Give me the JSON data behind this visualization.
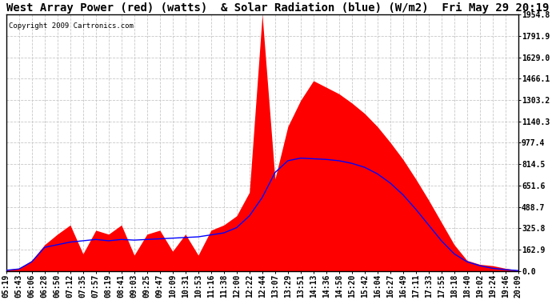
{
  "title": "West Array Power (red) (watts)  & Solar Radiation (blue) (W/m2)  Fri May 29 20:19",
  "copyright": "Copyright 2009 Cartronics.com",
  "background_color": "#ffffff",
  "plot_bg_color": "#ffffff",
  "grid_color": "#c8c8c8",
  "ymax": 1954.8,
  "ymin": 0.0,
  "yticks": [
    0.0,
    162.9,
    325.8,
    488.7,
    651.6,
    814.5,
    977.4,
    1140.3,
    1303.2,
    1466.1,
    1629.0,
    1791.9,
    1954.8
  ],
  "x_labels": [
    "05:19",
    "05:43",
    "06:06",
    "06:28",
    "06:50",
    "07:12",
    "07:35",
    "07:57",
    "08:19",
    "08:41",
    "09:03",
    "09:25",
    "09:47",
    "10:09",
    "10:31",
    "10:53",
    "11:16",
    "11:38",
    "12:00",
    "12:22",
    "12:44",
    "13:07",
    "13:29",
    "13:51",
    "14:13",
    "14:36",
    "14:58",
    "15:20",
    "15:42",
    "16:04",
    "16:27",
    "16:49",
    "17:11",
    "17:33",
    "17:55",
    "18:18",
    "18:40",
    "19:02",
    "19:24",
    "19:46",
    "20:09"
  ],
  "red_fill_color": "#ff0000",
  "blue_line_color": "#0000ff",
  "title_fontsize": 10,
  "tick_fontsize": 7,
  "copyright_fontsize": 6.5,
  "red_data": [
    10,
    20,
    80,
    200,
    280,
    350,
    130,
    310,
    280,
    350,
    120,
    280,
    310,
    150,
    280,
    120,
    310,
    350,
    420,
    600,
    1954,
    700,
    1100,
    1300,
    1450,
    1400,
    1350,
    1280,
    1200,
    1100,
    980,
    850,
    700,
    540,
    370,
    200,
    80,
    50,
    40,
    20,
    5
  ],
  "blue_data": [
    5,
    15,
    70,
    180,
    200,
    220,
    230,
    240,
    230,
    240,
    235,
    240,
    245,
    250,
    255,
    260,
    275,
    290,
    330,
    420,
    560,
    750,
    840,
    860,
    855,
    850,
    840,
    820,
    790,
    740,
    670,
    580,
    470,
    350,
    230,
    130,
    70,
    40,
    20,
    10,
    3
  ]
}
